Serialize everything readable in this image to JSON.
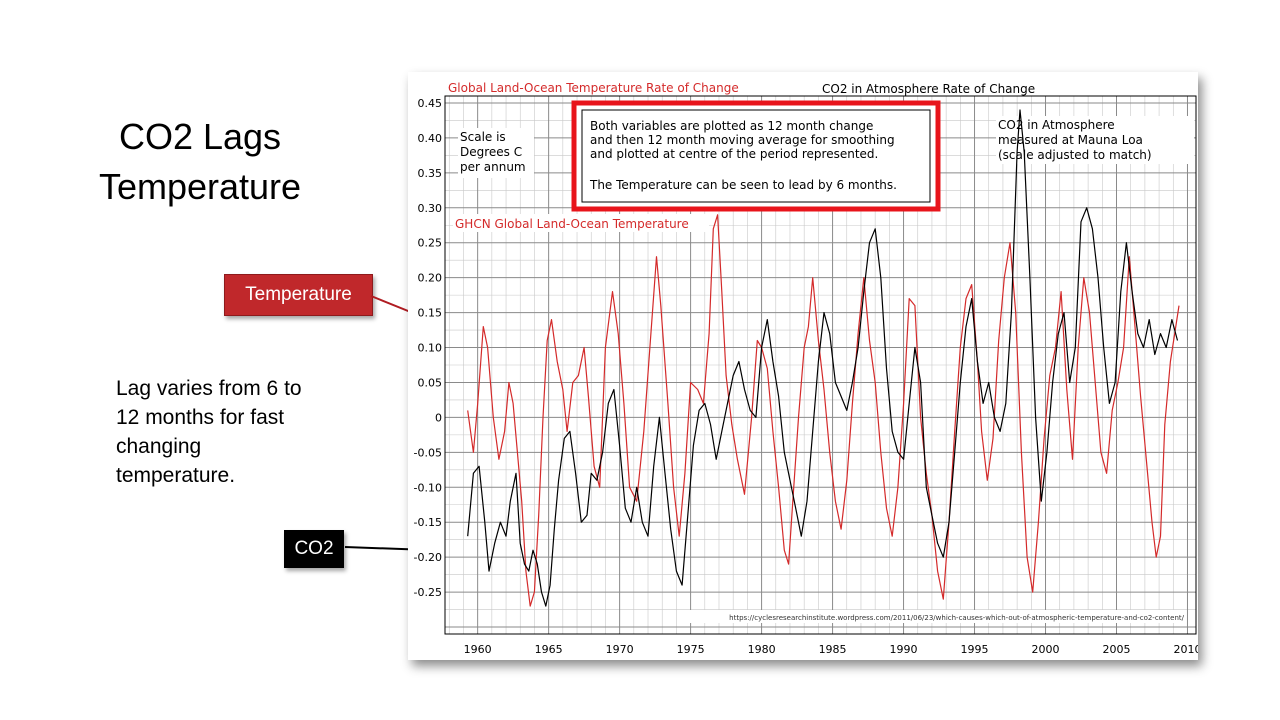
{
  "slide": {
    "title_line1": "CO2 Lags",
    "title_line2": "Temperature",
    "lag_note": "Lag varies from 6 to 12 months for fast changing temperature.",
    "callout_temperature": "Temperature",
    "callout_co2": "CO2"
  },
  "colors": {
    "temperature": "#d42a2a",
    "co2": "#000000",
    "callout_temperature_bg": "#c0282b",
    "callout_co2_bg": "#000000",
    "notice_border": "#e8141b"
  },
  "chart_data": {
    "type": "line",
    "title_left": "Global Land-Ocean Temperature Rate of Change",
    "title_right": "CO2 in Atmosphere Rate of Change",
    "scale_note": [
      "Scale is",
      "Degrees C",
      "per annum"
    ],
    "notice": [
      "Both variables are plotted as 12 month change",
      "and then 12 month moving average for smoothing",
      "and plotted at centre of the period represented.",
      "",
      "The Temperature can be seen to lead by 6 months."
    ],
    "co2_label": [
      "CO2 in Atmosphere",
      "measured at Mauna Loa",
      "(scale adjusted to match)"
    ],
    "temp_label": "GHCN Global Land-Ocean Temperature",
    "source": "https://cyclesresearchinstitute.wordpress.com/2011/06/23/which-causes-which-out-of-atmospheric-temperature-and-co2-content/",
    "xlim": [
      1957.7,
      2010.6
    ],
    "ylim": [
      -0.31,
      0.46
    ],
    "x_ticks": [
      "1960",
      "1965",
      "1970",
      "1975",
      "1980",
      "1985",
      "1990",
      "1995",
      "2000",
      "2005",
      "2010"
    ],
    "y_ticks": [
      "0.45",
      "0.40",
      "0.35",
      "0.30",
      "0.25",
      "0.20",
      "0.15",
      "0.10",
      "0.05",
      "0",
      "-0.05",
      "-0.10",
      "-0.15",
      "-0.20",
      "-0.25"
    ],
    "grid": true,
    "series": [
      {
        "name": "GHCN Global Land-Ocean Temperature",
        "color": "#d42a2a",
        "x": [
          1959.3,
          1959.7,
          1960.0,
          1960.4,
          1960.7,
          1961.1,
          1961.5,
          1961.9,
          1962.2,
          1962.5,
          1962.8,
          1963.1,
          1963.4,
          1963.7,
          1964.0,
          1964.3,
          1964.6,
          1964.9,
          1965.2,
          1965.6,
          1966.0,
          1966.3,
          1966.7,
          1967.1,
          1967.5,
          1967.8,
          1968.2,
          1968.6,
          1969.0,
          1969.5,
          1969.9,
          1970.3,
          1970.7,
          1971.2,
          1971.7,
          1972.2,
          1972.6,
          1972.9,
          1973.4,
          1973.8,
          1974.2,
          1974.6,
          1975.0,
          1975.5,
          1975.9,
          1976.3,
          1976.6,
          1976.9,
          1977.2,
          1977.5,
          1977.9,
          1978.3,
          1978.8,
          1979.3,
          1979.7,
          1980.0,
          1980.4,
          1980.8,
          1981.2,
          1981.6,
          1981.9,
          1982.2,
          1982.6,
          1983.0,
          1983.3,
          1983.6,
          1984.0,
          1984.4,
          1984.8,
          1985.2,
          1985.6,
          1986.0,
          1986.4,
          1986.8,
          1987.2,
          1987.6,
          1988.0,
          1988.4,
          1988.8,
          1989.2,
          1989.6,
          1990.0,
          1990.4,
          1990.8,
          1991.2,
          1991.6,
          1992.0,
          1992.4,
          1992.8,
          1993.2,
          1993.6,
          1994.0,
          1994.4,
          1994.8,
          1995.2,
          1995.5,
          1995.9,
          1996.3,
          1996.7,
          1997.1,
          1997.5,
          1997.9,
          1998.3,
          1998.7,
          1999.1,
          1999.5,
          1999.9,
          2000.3,
          2000.7,
          2001.1,
          2001.5,
          2001.9,
          2002.3,
          2002.7,
          2003.1,
          2003.5,
          2003.9,
          2004.3,
          2004.7,
          2005.1,
          2005.5,
          2005.9,
          2006.3,
          2006.7,
          2007.1,
          2007.5,
          2007.8,
          2008.1,
          2008.4,
          2008.8,
          2009.1,
          2009.4
        ],
        "y": [
          0.01,
          -0.05,
          0.02,
          0.13,
          0.1,
          0.0,
          -0.06,
          -0.02,
          0.05,
          0.02,
          -0.05,
          -0.12,
          -0.22,
          -0.27,
          -0.25,
          -0.14,
          0.0,
          0.11,
          0.14,
          0.08,
          0.04,
          -0.02,
          0.05,
          0.06,
          0.1,
          0.03,
          -0.07,
          -0.1,
          0.1,
          0.18,
          0.12,
          0.02,
          -0.1,
          -0.12,
          -0.02,
          0.12,
          0.23,
          0.16,
          0.02,
          -0.1,
          -0.17,
          -0.08,
          0.05,
          0.04,
          0.02,
          0.12,
          0.27,
          0.29,
          0.18,
          0.06,
          -0.01,
          -0.06,
          -0.11,
          0.0,
          0.11,
          0.1,
          0.07,
          -0.02,
          -0.1,
          -0.19,
          -0.21,
          -0.12,
          0.0,
          0.1,
          0.13,
          0.2,
          0.11,
          0.04,
          -0.05,
          -0.12,
          -0.16,
          -0.09,
          0.02,
          0.12,
          0.2,
          0.11,
          0.05,
          -0.05,
          -0.13,
          -0.17,
          -0.1,
          0.02,
          0.17,
          0.16,
          0.0,
          -0.08,
          -0.14,
          -0.22,
          -0.26,
          -0.15,
          -0.02,
          0.1,
          0.17,
          0.19,
          0.08,
          -0.02,
          -0.09,
          -0.03,
          0.11,
          0.2,
          0.25,
          0.15,
          -0.05,
          -0.2,
          -0.25,
          -0.15,
          -0.03,
          0.06,
          0.1,
          0.18,
          0.04,
          -0.06,
          0.1,
          0.2,
          0.15,
          0.05,
          -0.05,
          -0.08,
          0.01,
          0.05,
          0.1,
          0.23,
          0.13,
          0.03,
          -0.06,
          -0.15,
          -0.2,
          -0.17,
          -0.01,
          0.08,
          0.12,
          0.16
        ]
      },
      {
        "name": "CO2 in Atmosphere",
        "color": "#000000",
        "x": [
          1959.3,
          1959.7,
          1960.1,
          1960.5,
          1960.8,
          1961.2,
          1961.6,
          1962.0,
          1962.3,
          1962.7,
          1963.0,
          1963.3,
          1963.6,
          1963.9,
          1964.2,
          1964.5,
          1964.8,
          1965.1,
          1965.4,
          1965.7,
          1966.1,
          1966.5,
          1966.9,
          1967.3,
          1967.7,
          1968.0,
          1968.4,
          1968.8,
          1969.2,
          1969.6,
          1970.0,
          1970.4,
          1970.8,
          1971.2,
          1971.6,
          1972.0,
          1972.4,
          1972.8,
          1973.2,
          1973.6,
          1974.0,
          1974.4,
          1974.8,
          1975.2,
          1975.6,
          1976.0,
          1976.4,
          1976.8,
          1977.2,
          1977.6,
          1978.0,
          1978.4,
          1978.8,
          1979.2,
          1979.6,
          1980.0,
          1980.4,
          1980.8,
          1981.2,
          1981.6,
          1982.0,
          1982.4,
          1982.8,
          1983.2,
          1983.6,
          1984.0,
          1984.4,
          1984.8,
          1985.2,
          1985.6,
          1986.0,
          1986.4,
          1986.8,
          1987.2,
          1987.6,
          1988.0,
          1988.4,
          1988.8,
          1989.2,
          1989.6,
          1990.0,
          1990.4,
          1990.8,
          1991.2,
          1991.6,
          1992.0,
          1992.4,
          1992.8,
          1993.2,
          1993.6,
          1994.0,
          1994.4,
          1994.8,
          1995.2,
          1995.6,
          1996.0,
          1996.4,
          1996.8,
          1997.2,
          1997.6,
          1998.0,
          1998.2,
          1998.5,
          1998.9,
          1999.3,
          1999.7,
          2000.1,
          2000.5,
          2000.9,
          2001.3,
          2001.7,
          2002.1,
          2002.5,
          2002.9,
          2003.3,
          2003.7,
          2004.1,
          2004.5,
          2004.9,
          2005.3,
          2005.7,
          2006.1,
          2006.5,
          2006.9,
          2007.3,
          2007.7,
          2008.1,
          2008.5,
          2008.9,
          2009.3
        ],
        "y": [
          -0.17,
          -0.08,
          -0.07,
          -0.15,
          -0.22,
          -0.18,
          -0.15,
          -0.17,
          -0.12,
          -0.08,
          -0.18,
          -0.21,
          -0.22,
          -0.19,
          -0.21,
          -0.25,
          -0.27,
          -0.24,
          -0.16,
          -0.09,
          -0.03,
          -0.02,
          -0.08,
          -0.15,
          -0.14,
          -0.08,
          -0.09,
          -0.05,
          0.02,
          0.04,
          -0.04,
          -0.13,
          -0.15,
          -0.1,
          -0.15,
          -0.17,
          -0.07,
          0.0,
          -0.08,
          -0.16,
          -0.22,
          -0.24,
          -0.14,
          -0.04,
          0.01,
          0.02,
          -0.01,
          -0.06,
          -0.02,
          0.02,
          0.06,
          0.08,
          0.04,
          0.01,
          0.0,
          0.1,
          0.14,
          0.08,
          0.03,
          -0.05,
          -0.09,
          -0.13,
          -0.17,
          -0.12,
          -0.02,
          0.08,
          0.15,
          0.12,
          0.05,
          0.03,
          0.01,
          0.05,
          0.1,
          0.18,
          0.25,
          0.27,
          0.2,
          0.07,
          -0.02,
          -0.05,
          -0.06,
          0.02,
          0.1,
          0.05,
          -0.1,
          -0.14,
          -0.18,
          -0.2,
          -0.15,
          -0.05,
          0.05,
          0.13,
          0.17,
          0.08,
          0.02,
          0.05,
          0.0,
          -0.02,
          0.02,
          0.15,
          0.38,
          0.44,
          0.38,
          0.2,
          0.0,
          -0.12,
          -0.05,
          0.05,
          0.12,
          0.15,
          0.05,
          0.1,
          0.28,
          0.3,
          0.27,
          0.2,
          0.1,
          0.02,
          0.05,
          0.18,
          0.25,
          0.18,
          0.12,
          0.1,
          0.14,
          0.09,
          0.12,
          0.1,
          0.14,
          0.11
        ]
      }
    ]
  }
}
